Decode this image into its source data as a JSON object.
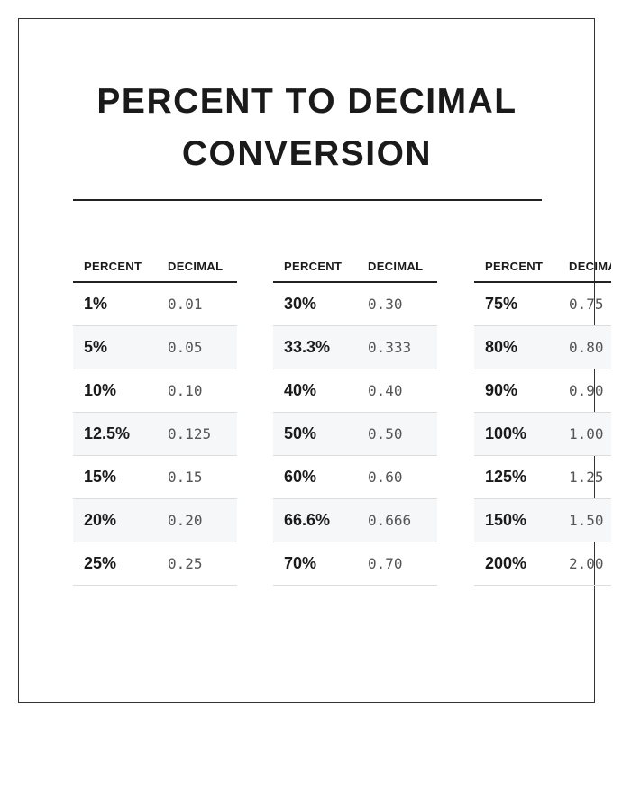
{
  "title_lines": [
    "PERCENT TO DECIMAL",
    "CONVERSION"
  ],
  "headers": {
    "percent": "PERCENT",
    "decimal": "DECIMAL"
  },
  "tables": [
    {
      "rows": [
        {
          "percent": "1%",
          "decimal": "0.01"
        },
        {
          "percent": "5%",
          "decimal": "0.05"
        },
        {
          "percent": "10%",
          "decimal": "0.10"
        },
        {
          "percent": "12.5%",
          "decimal": "0.125"
        },
        {
          "percent": "15%",
          "decimal": "0.15"
        },
        {
          "percent": "20%",
          "decimal": "0.20"
        },
        {
          "percent": "25%",
          "decimal": "0.25"
        }
      ]
    },
    {
      "rows": [
        {
          "percent": "30%",
          "decimal": "0.30"
        },
        {
          "percent": "33.3%",
          "decimal": "0.333"
        },
        {
          "percent": "40%",
          "decimal": "0.40"
        },
        {
          "percent": "50%",
          "decimal": "0.50"
        },
        {
          "percent": "60%",
          "decimal": "0.60"
        },
        {
          "percent": "66.6%",
          "decimal": "0.666"
        },
        {
          "percent": "70%",
          "decimal": "0.70"
        }
      ]
    },
    {
      "rows": [
        {
          "percent": "75%",
          "decimal": "0.75"
        },
        {
          "percent": "80%",
          "decimal": "0.80"
        },
        {
          "percent": "90%",
          "decimal": "0.90"
        },
        {
          "percent": "100%",
          "decimal": "1.00"
        },
        {
          "percent": "125%",
          "decimal": "1.25"
        },
        {
          "percent": "150%",
          "decimal": "1.50"
        },
        {
          "percent": "200%",
          "decimal": "2.00"
        }
      ]
    }
  ]
}
